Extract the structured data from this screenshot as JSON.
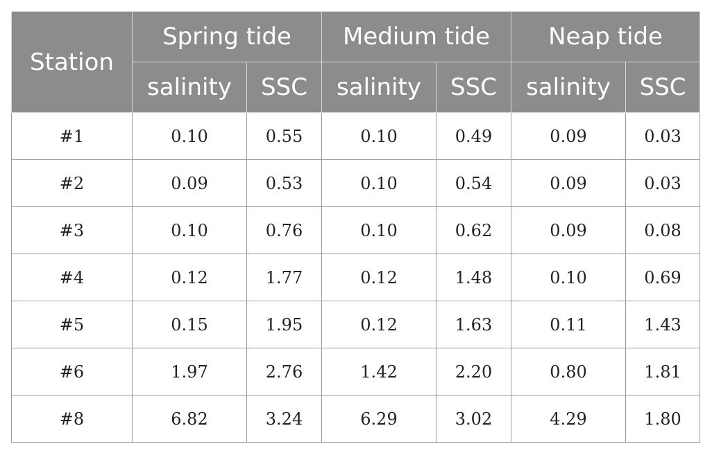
{
  "table": {
    "station_header": "Station",
    "groups": [
      "Spring tide",
      "Medium tide",
      "Neap tide"
    ],
    "sub_headers": [
      "salinity",
      "SSC",
      "salinity",
      "SSC",
      "salinity",
      "SSC"
    ],
    "rows": [
      {
        "station": "#1",
        "values": [
          "0.10",
          "0.55",
          "0.10",
          "0.49",
          "0.09",
          "0.03"
        ]
      },
      {
        "station": "#2",
        "values": [
          "0.09",
          "0.53",
          "0.10",
          "0.54",
          "0.09",
          "0.03"
        ]
      },
      {
        "station": "#3",
        "values": [
          "0.10",
          "0.76",
          "0.10",
          "0.62",
          "0.09",
          "0.08"
        ]
      },
      {
        "station": "#4",
        "values": [
          "0.12",
          "1.77",
          "0.12",
          "1.48",
          "0.10",
          "0.69"
        ]
      },
      {
        "station": "#5",
        "values": [
          "0.15",
          "1.95",
          "0.12",
          "1.63",
          "0.11",
          "1.43"
        ]
      },
      {
        "station": "#6",
        "values": [
          "1.97",
          "2.76",
          "1.42",
          "2.20",
          "0.80",
          "1.81"
        ]
      },
      {
        "station": "#8",
        "values": [
          "6.82",
          "3.24",
          "6.29",
          "3.02",
          "4.29",
          "1.80"
        ]
      }
    ]
  },
  "colors": {
    "header_bg": "#8c8c8c",
    "header_text": "#ffffff",
    "border": "#9a9a9a"
  }
}
